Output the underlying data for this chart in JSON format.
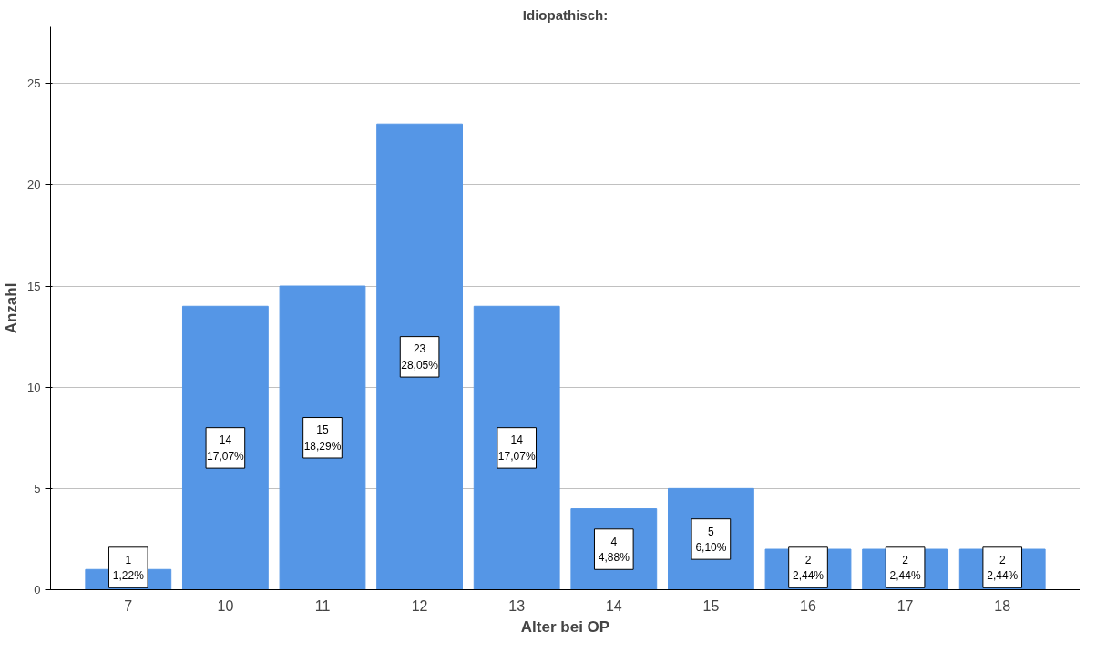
{
  "chart_data": {
    "type": "bar",
    "title": "Idiopathisch:",
    "xlabel": "Alter bei OP",
    "ylabel": "Anzahl",
    "categories": [
      "7",
      "10",
      "11",
      "12",
      "13",
      "14",
      "15",
      "16",
      "17",
      "18"
    ],
    "values": [
      1,
      14,
      15,
      23,
      14,
      4,
      5,
      2,
      2,
      2
    ],
    "color": "#5596e6",
    "value_labels": [
      "1\n1,22%",
      "14\n17,07%",
      "15\n18,29%",
      "23\n28,05%",
      "14\n17,07%",
      "4\n4,88%",
      "5\n6,10%",
      "2\n2,44%",
      "2\n2,44%",
      "2\n2,44%"
    ],
    "ylim": [
      0,
      27.8
    ],
    "yticks": [
      0,
      5,
      10,
      15,
      20,
      25
    ],
    "grid": "y"
  }
}
